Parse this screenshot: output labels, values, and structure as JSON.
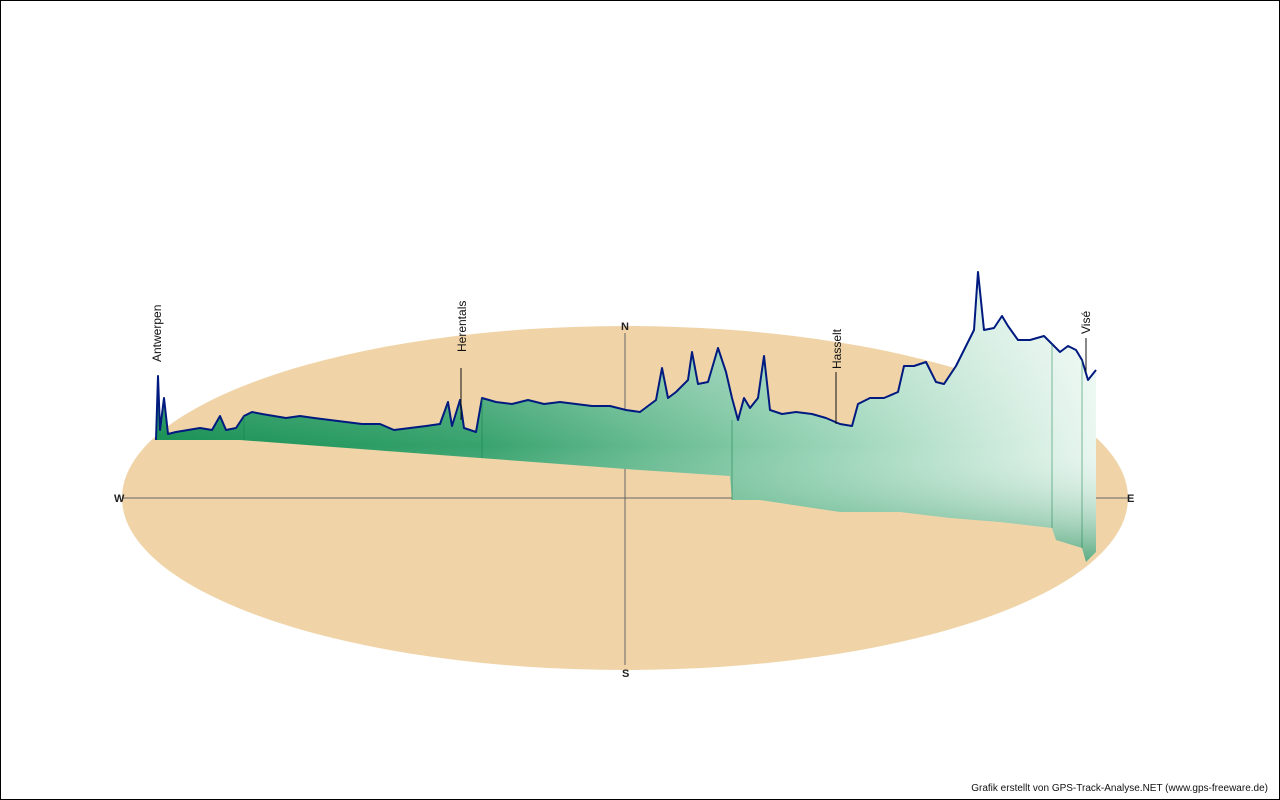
{
  "chart_data": {
    "type": "area",
    "title": "",
    "projection": "3d-track-profile",
    "compass": {
      "west": "W",
      "east": "E",
      "north": "N",
      "south": "S"
    },
    "places": [
      {
        "name": "Antwerpen"
      },
      {
        "name": "Herentals"
      },
      {
        "name": "Hasselt"
      },
      {
        "name": "Visé"
      }
    ],
    "colors": {
      "ground": "#f0d4a8",
      "axis": "#666666",
      "profile_line": "#001a80",
      "fill_dark": "#008040",
      "fill_light": "#ffffff"
    },
    "legend": "none",
    "grid": false
  },
  "credit": "Grafik erstellt von GPS-Track-Analyse.NET (www.gps-freeware.de)"
}
